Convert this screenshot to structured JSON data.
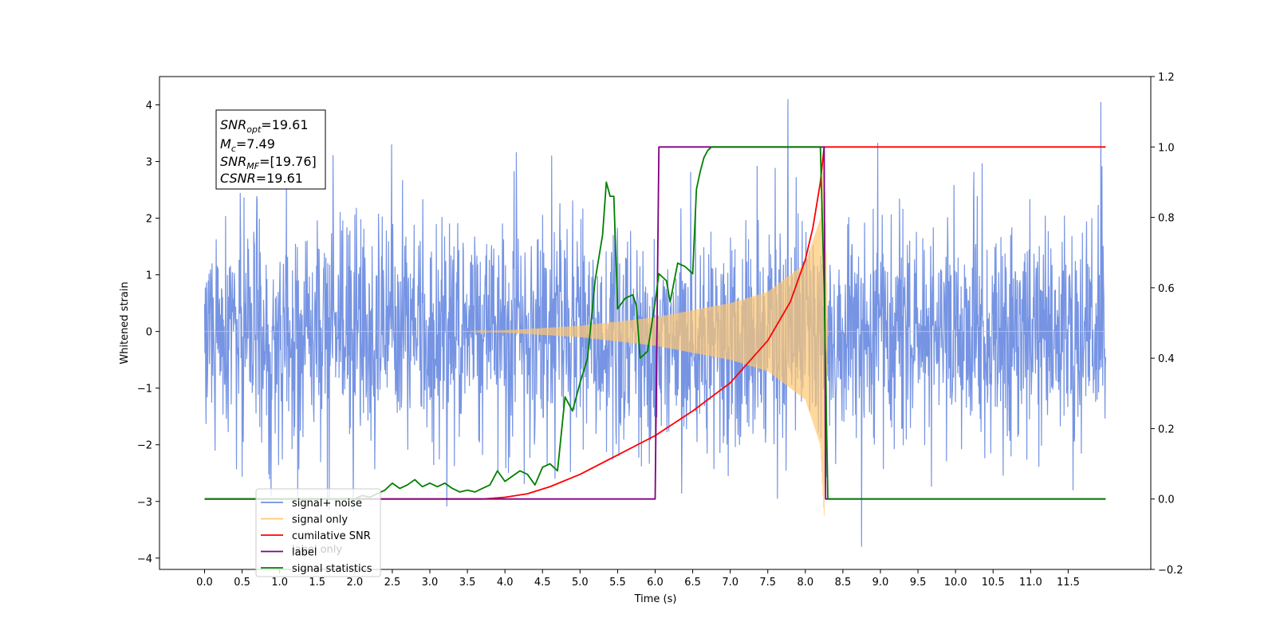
{
  "chart_data": {
    "type": "line",
    "xlabel": "Time (s)",
    "ylabel": "Whitened strain",
    "xlim": [
      -0.6,
      12.6
    ],
    "ylim": [
      -4.2,
      4.5
    ],
    "y2lim": [
      -0.2,
      1.2
    ],
    "x_ticks": [
      "0.0",
      "0.5",
      "1.0",
      "1.5",
      "2.0",
      "2.5",
      "3.0",
      "3.5",
      "4.0",
      "4.5",
      "5.0",
      "5.5",
      "6.0",
      "6.5",
      "7.0",
      "7.5",
      "8.0",
      "8.5",
      "9.0",
      "9.5",
      "10.0",
      "10.5",
      "11.0",
      "11.5"
    ],
    "y_ticks": [
      "4",
      "3",
      "2",
      "1",
      "0",
      "−1",
      "−2",
      "−3",
      "−4"
    ],
    "y2_ticks": [
      "1.2",
      "1.0",
      "0.8",
      "0.6",
      "0.4",
      "0.2",
      "0.0",
      "−0.2"
    ],
    "grid": false,
    "legend_position": "lower-left",
    "annotation": {
      "lines": [
        {
          "base": "SNR",
          "sub": "opt",
          "value": "=19.61"
        },
        {
          "base": "M",
          "sub": "c",
          "value": "=7.49"
        },
        {
          "base": "SNR",
          "sub": "MF",
          "value": "=[19.76]"
        },
        {
          "base": "CSNR",
          "sub": "",
          "value": "=19.61"
        }
      ]
    },
    "legend": [
      {
        "label": "signal+ noise",
        "color": "#6f8ee2"
      },
      {
        "label": "signal only",
        "color": "#ffc870"
      },
      {
        "label": "cumilative SNR",
        "color": "#ff0000"
      },
      {
        "label": "label",
        "color": "#800080"
      },
      {
        "label": "signal statistics",
        "color": "#008000"
      }
    ],
    "ghost_label": "label only",
    "series": [
      {
        "name": "signal+ noise",
        "axis": "left",
        "color": "#6f8ee2",
        "x_range": [
          0.0,
          12.0
        ],
        "noise_sigma": 1.0,
        "peak_range": [
          -3.8,
          4.1
        ]
      },
      {
        "name": "signal only",
        "axis": "left",
        "color": "#ffc870",
        "x_range": [
          0.0,
          12.0
        ],
        "envelope": {
          "t": [
            0.0,
            3.5,
            4.0,
            5.0,
            6.0,
            7.0,
            7.5,
            8.0,
            8.2,
            8.25,
            8.3,
            12.0
          ],
          "amp": [
            0.0,
            0.0,
            0.02,
            0.1,
            0.25,
            0.5,
            0.7,
            1.2,
            2.0,
            3.3,
            0.0,
            0.0
          ]
        }
      },
      {
        "name": "cumilative SNR",
        "axis": "right",
        "color": "#ff0000",
        "x": [
          0.0,
          3.7,
          4.0,
          4.3,
          4.6,
          5.0,
          5.5,
          6.0,
          6.5,
          7.0,
          7.5,
          7.8,
          8.0,
          8.1,
          8.2,
          8.25,
          8.3,
          12.0
        ],
        "y": [
          0.0,
          0.0,
          0.005,
          0.015,
          0.035,
          0.07,
          0.125,
          0.18,
          0.25,
          0.33,
          0.45,
          0.56,
          0.68,
          0.77,
          0.9,
          1.0,
          1.0,
          1.0
        ]
      },
      {
        "name": "label",
        "axis": "right",
        "color": "#800080",
        "x": [
          0.0,
          6.0,
          6.05,
          8.25,
          8.27,
          12.0
        ],
        "y": [
          0.0,
          0.0,
          1.0,
          1.0,
          0.0,
          0.0
        ]
      },
      {
        "name": "signal statistics",
        "axis": "right",
        "color": "#008000",
        "x": [
          0.0,
          2.0,
          2.1,
          2.2,
          2.3,
          2.4,
          2.5,
          2.6,
          2.7,
          2.8,
          2.9,
          3.0,
          3.1,
          3.2,
          3.3,
          3.4,
          3.5,
          3.6,
          3.7,
          3.8,
          3.9,
          4.0,
          4.1,
          4.2,
          4.3,
          4.4,
          4.5,
          4.6,
          4.7,
          4.8,
          4.9,
          5.0,
          5.1,
          5.2,
          5.3,
          5.35,
          5.4,
          5.45,
          5.5,
          5.6,
          5.7,
          5.75,
          5.8,
          5.9,
          6.0,
          6.05,
          6.1,
          6.15,
          6.2,
          6.3,
          6.4,
          6.5,
          6.55,
          6.6,
          6.65,
          6.7,
          6.75,
          6.8,
          6.85,
          8.2,
          8.25,
          8.3,
          12.0
        ],
        "y": [
          0.0,
          0.0,
          0.01,
          0.005,
          0.015,
          0.025,
          0.045,
          0.03,
          0.04,
          0.055,
          0.035,
          0.045,
          0.035,
          0.045,
          0.03,
          0.02,
          0.025,
          0.02,
          0.03,
          0.04,
          0.08,
          0.05,
          0.065,
          0.08,
          0.07,
          0.04,
          0.09,
          0.1,
          0.08,
          0.29,
          0.25,
          0.33,
          0.4,
          0.62,
          0.75,
          0.9,
          0.86,
          0.86,
          0.54,
          0.57,
          0.58,
          0.55,
          0.4,
          0.42,
          0.56,
          0.64,
          0.63,
          0.62,
          0.56,
          0.67,
          0.66,
          0.64,
          0.88,
          0.93,
          0.97,
          0.99,
          1.0,
          1.0,
          1.0,
          1.0,
          0.6,
          0.0,
          0.0
        ]
      }
    ]
  }
}
